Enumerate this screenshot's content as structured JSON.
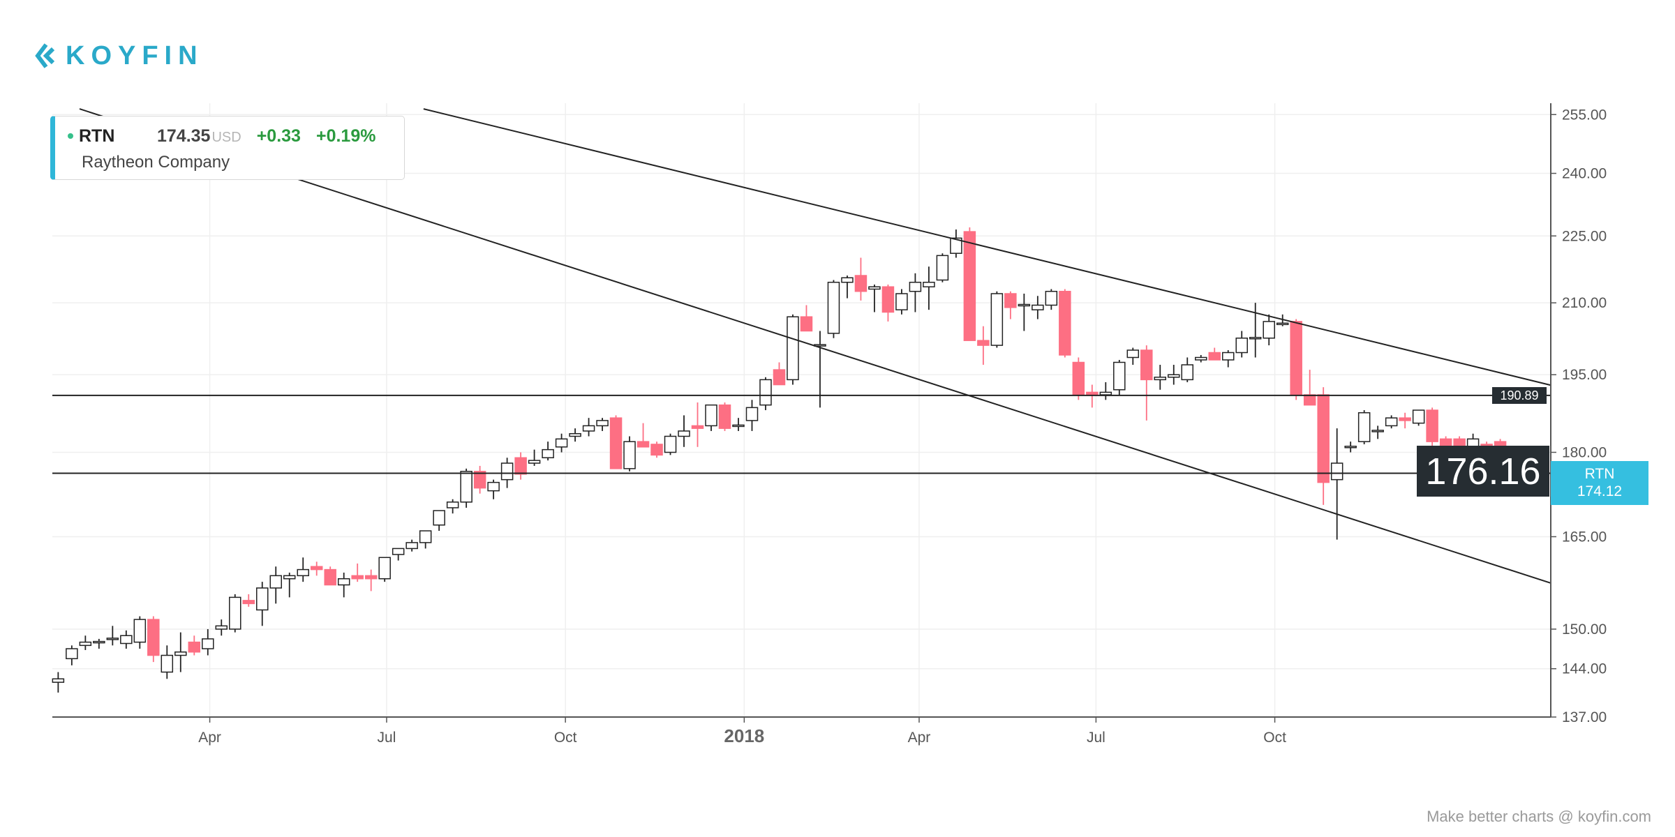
{
  "brand": {
    "name": "KOYFIN",
    "color": "#2aa9c9"
  },
  "info": {
    "symbol": "RTN",
    "price": "174.35",
    "currency": "USD",
    "change": "+0.33",
    "change_pct": "+0.19%",
    "company": "Raytheon Company"
  },
  "price_label": "176.16",
  "ticker_label": {
    "symbol": "RTN",
    "price": "174.12"
  },
  "level_label": "190.89",
  "footer": "Make better charts @ koyfin.com",
  "colors": {
    "up": "#ffffff",
    "down": "#fd6f83",
    "line": "#222222",
    "accent": "#35bfe0",
    "label_bg": "#262d32"
  },
  "chart_data": {
    "type": "candlestick",
    "title": "RTN weekly",
    "x_ticks": [
      {
        "label": "Apr",
        "date": "2017-04-01"
      },
      {
        "label": "Jul",
        "date": "2017-07-01"
      },
      {
        "label": "Oct",
        "date": "2017-10-01"
      },
      {
        "label": "2018",
        "date": "2018-01-01"
      },
      {
        "label": "Apr",
        "date": "2018-04-01"
      },
      {
        "label": "Jul",
        "date": "2018-07-01"
      },
      {
        "label": "Oct",
        "date": "2018-10-01"
      }
    ],
    "x_range": [
      "2017-01-10",
      "2019-02-20"
    ],
    "y_ticks": [
      "255.00",
      "240.00",
      "225.00",
      "210.00",
      "195.00",
      "180.00",
      "165.00",
      "150.00",
      "144.00",
      "137.00"
    ],
    "ylim": [
      137,
      258
    ],
    "y_scale": "log",
    "candles": [
      [
        "2017-01-13",
        142.0,
        143.5,
        140.5,
        142.5
      ],
      [
        "2017-01-20",
        145.5,
        147.5,
        144.5,
        147.0
      ],
      [
        "2017-01-27",
        147.5,
        149.0,
        146.8,
        148.0
      ],
      [
        "2017-02-03",
        148.0,
        148.5,
        147.0,
        148.0
      ],
      [
        "2017-02-10",
        148.5,
        150.5,
        147.5,
        148.5
      ],
      [
        "2017-02-17",
        147.8,
        149.8,
        147.0,
        149.0
      ],
      [
        "2017-02-24",
        148.0,
        152.0,
        147.0,
        151.5
      ],
      [
        "2017-03-03",
        151.5,
        152.0,
        145.0,
        146.0
      ],
      [
        "2017-03-10",
        143.5,
        147.5,
        142.5,
        146.0
      ],
      [
        "2017-03-17",
        146.0,
        149.5,
        143.5,
        146.5
      ],
      [
        "2017-03-24",
        148.0,
        149.0,
        146.0,
        146.5
      ],
      [
        "2017-03-31",
        147.0,
        150.0,
        146.0,
        148.5
      ],
      [
        "2017-04-07",
        150.0,
        151.5,
        149.0,
        150.5
      ],
      [
        "2017-04-14",
        150.0,
        155.5,
        149.5,
        155.0
      ],
      [
        "2017-04-21",
        154.5,
        155.5,
        153.5,
        154.0
      ],
      [
        "2017-04-28",
        153.0,
        157.5,
        150.5,
        156.5
      ],
      [
        "2017-05-05",
        156.5,
        160.0,
        154.0,
        158.5
      ],
      [
        "2017-05-12",
        158.0,
        159.0,
        155.0,
        158.5
      ],
      [
        "2017-05-19",
        158.5,
        161.5,
        157.5,
        159.5
      ],
      [
        "2017-05-26",
        160.0,
        160.8,
        158.5,
        159.5
      ],
      [
        "2017-06-02",
        159.5,
        160.0,
        157.0,
        157.0
      ],
      [
        "2017-06-09",
        157.0,
        159.0,
        155.0,
        158.0
      ],
      [
        "2017-06-16",
        158.5,
        160.5,
        157.5,
        158.0
      ],
      [
        "2017-06-23",
        158.5,
        159.5,
        156.0,
        158.0
      ],
      [
        "2017-06-30",
        158.0,
        161.5,
        157.5,
        161.5
      ],
      [
        "2017-07-07",
        162.0,
        163.0,
        161.0,
        163.0
      ],
      [
        "2017-07-14",
        163.0,
        164.5,
        162.5,
        164.0
      ],
      [
        "2017-07-21",
        164.0,
        166.0,
        163.0,
        166.0
      ],
      [
        "2017-07-28",
        167.0,
        169.5,
        166.0,
        169.5
      ],
      [
        "2017-08-04",
        170.0,
        171.5,
        169.0,
        171.0
      ],
      [
        "2017-08-11",
        171.0,
        177.0,
        170.0,
        176.5
      ],
      [
        "2017-08-18",
        176.5,
        177.5,
        172.5,
        173.5
      ],
      [
        "2017-08-25",
        173.0,
        175.0,
        171.5,
        174.5
      ],
      [
        "2017-09-01",
        175.0,
        179.0,
        173.5,
        178.0
      ],
      [
        "2017-09-08",
        179.0,
        180.0,
        175.0,
        176.0
      ],
      [
        "2017-09-15",
        178.0,
        180.5,
        177.5,
        178.5
      ],
      [
        "2017-09-22",
        179.0,
        182.0,
        178.5,
        180.5
      ],
      [
        "2017-09-29",
        181.0,
        183.5,
        180.0,
        182.5
      ],
      [
        "2017-10-06",
        183.0,
        184.5,
        182.0,
        183.5
      ],
      [
        "2017-10-13",
        184.0,
        186.5,
        183.0,
        185.0
      ],
      [
        "2017-10-20",
        185.0,
        186.5,
        184.0,
        186.0
      ],
      [
        "2017-10-27",
        186.5,
        187.0,
        177.0,
        177.0
      ],
      [
        "2017-11-03",
        177.0,
        183.0,
        176.5,
        182.0
      ],
      [
        "2017-11-10",
        182.0,
        185.5,
        181.0,
        181.0
      ],
      [
        "2017-11-17",
        181.5,
        182.0,
        179.0,
        179.5
      ],
      [
        "2017-11-24",
        180.0,
        183.5,
        179.5,
        183.0
      ],
      [
        "2017-12-01",
        183.0,
        187.0,
        181.0,
        184.0
      ],
      [
        "2017-12-08",
        185.0,
        189.5,
        181.0,
        184.5
      ],
      [
        "2017-12-15",
        185.0,
        189.0,
        184.0,
        189.0
      ],
      [
        "2017-12-22",
        189.0,
        189.5,
        184.0,
        184.5
      ],
      [
        "2017-12-29",
        185.0,
        186.5,
        184.0,
        185.0
      ],
      [
        "2018-01-05",
        186.0,
        190.0,
        184.0,
        188.5
      ],
      [
        "2018-01-12",
        189.0,
        194.5,
        188.0,
        194.0
      ],
      [
        "2018-01-19",
        196.0,
        197.5,
        193.0,
        193.0
      ],
      [
        "2018-01-26",
        194.0,
        207.5,
        193.0,
        207.0
      ],
      [
        "2018-02-02",
        207.0,
        209.5,
        204.0,
        204.0
      ],
      [
        "2018-02-09",
        201.0,
        204.0,
        188.5,
        201.0
      ],
      [
        "2018-02-16",
        203.5,
        215.0,
        202.5,
        214.5
      ],
      [
        "2018-02-23",
        214.5,
        216.0,
        211.0,
        215.5
      ],
      [
        "2018-03-02",
        216.0,
        220.0,
        210.5,
        212.5
      ],
      [
        "2018-03-09",
        213.0,
        214.0,
        208.0,
        213.5
      ],
      [
        "2018-03-16",
        213.5,
        214.0,
        206.0,
        208.0
      ],
      [
        "2018-03-23",
        208.5,
        213.0,
        207.5,
        212.0
      ],
      [
        "2018-03-30",
        212.5,
        216.5,
        208.0,
        214.5
      ],
      [
        "2018-04-06",
        213.5,
        218.0,
        208.5,
        214.5
      ],
      [
        "2018-04-13",
        215.0,
        221.0,
        214.5,
        220.5
      ],
      [
        "2018-04-20",
        221.0,
        226.5,
        220.0,
        224.5
      ],
      [
        "2018-04-27",
        226.0,
        227.0,
        202.0,
        202.0
      ],
      [
        "2018-05-04",
        202.0,
        205.0,
        197.0,
        201.0
      ],
      [
        "2018-05-11",
        201.0,
        212.5,
        200.5,
        212.0
      ],
      [
        "2018-05-18",
        212.0,
        212.5,
        206.5,
        209.0
      ],
      [
        "2018-05-25",
        209.5,
        212.0,
        204.0,
        209.5
      ],
      [
        "2018-06-01",
        208.5,
        211.5,
        206.5,
        209.5
      ],
      [
        "2018-06-08",
        209.5,
        213.0,
        208.5,
        212.5
      ],
      [
        "2018-06-15",
        212.5,
        213.0,
        198.5,
        199.0
      ],
      [
        "2018-06-22",
        197.5,
        198.5,
        190.0,
        191.0
      ],
      [
        "2018-06-29",
        191.5,
        193.0,
        188.5,
        191.0
      ],
      [
        "2018-07-06",
        191.0,
        193.5,
        190.0,
        191.5
      ],
      [
        "2018-07-13",
        192.0,
        198.0,
        191.0,
        197.5
      ],
      [
        "2018-07-20",
        198.5,
        200.5,
        197.0,
        200.0
      ],
      [
        "2018-07-27",
        200.0,
        201.0,
        186.0,
        194.0
      ],
      [
        "2018-08-03",
        194.0,
        197.0,
        192.0,
        194.5
      ],
      [
        "2018-08-10",
        194.5,
        197.0,
        193.0,
        195.0
      ],
      [
        "2018-08-17",
        194.0,
        198.5,
        193.5,
        197.0
      ],
      [
        "2018-08-24",
        198.0,
        199.0,
        197.5,
        198.5
      ],
      [
        "2018-08-31",
        199.5,
        200.5,
        198.0,
        198.0
      ],
      [
        "2018-09-07",
        198.0,
        200.0,
        196.5,
        199.5
      ],
      [
        "2018-09-14",
        199.5,
        204.0,
        198.5,
        202.5
      ],
      [
        "2018-09-21",
        202.5,
        210.0,
        198.5,
        202.5
      ],
      [
        "2018-09-28",
        202.5,
        207.5,
        201.0,
        206.0
      ],
      [
        "2018-10-05",
        205.5,
        207.5,
        205.0,
        205.5
      ],
      [
        "2018-10-12",
        206.0,
        206.5,
        190.0,
        191.0
      ],
      [
        "2018-10-19",
        191.0,
        196.0,
        189.5,
        189.0
      ],
      [
        "2018-10-26",
        191.0,
        192.5,
        170.5,
        174.5
      ],
      [
        "2018-11-02",
        175.0,
        184.5,
        164.5,
        178.0
      ],
      [
        "2018-11-09",
        181.0,
        182.0,
        180.0,
        181.0
      ],
      [
        "2018-11-16",
        182.0,
        188.0,
        181.5,
        187.5
      ],
      [
        "2018-11-23",
        184.0,
        185.0,
        182.5,
        184.0
      ],
      [
        "2018-11-30",
        185.0,
        187.0,
        184.5,
        186.5
      ],
      [
        "2018-12-07",
        186.5,
        187.5,
        184.5,
        186.0
      ],
      [
        "2018-12-14",
        185.5,
        188.0,
        185.0,
        188.0
      ],
      [
        "2018-12-21",
        188.0,
        188.5,
        179.0,
        182.0
      ],
      [
        "2018-12-28",
        182.5,
        183.0,
        179.5,
        180.0
      ],
      [
        "2019-01-04",
        182.5,
        183.0,
        179.0,
        180.5
      ],
      [
        "2019-01-11",
        180.5,
        183.5,
        178.0,
        182.5
      ],
      [
        "2019-01-18",
        181.5,
        182.0,
        179.0,
        181.0
      ],
      [
        "2019-01-25",
        182.0,
        182.5,
        176.5,
        177.0
      ]
    ],
    "horizontal_lines": [
      190.89,
      176.16
    ],
    "trend_lines": [
      {
        "from": [
          "2017-01-24",
          256.5
        ],
        "to": [
          "2019-02-20",
          157.3
        ]
      },
      {
        "from": [
          "2017-07-20",
          256.5
        ],
        "to": [
          "2019-02-20",
          192.9
        ]
      }
    ]
  }
}
